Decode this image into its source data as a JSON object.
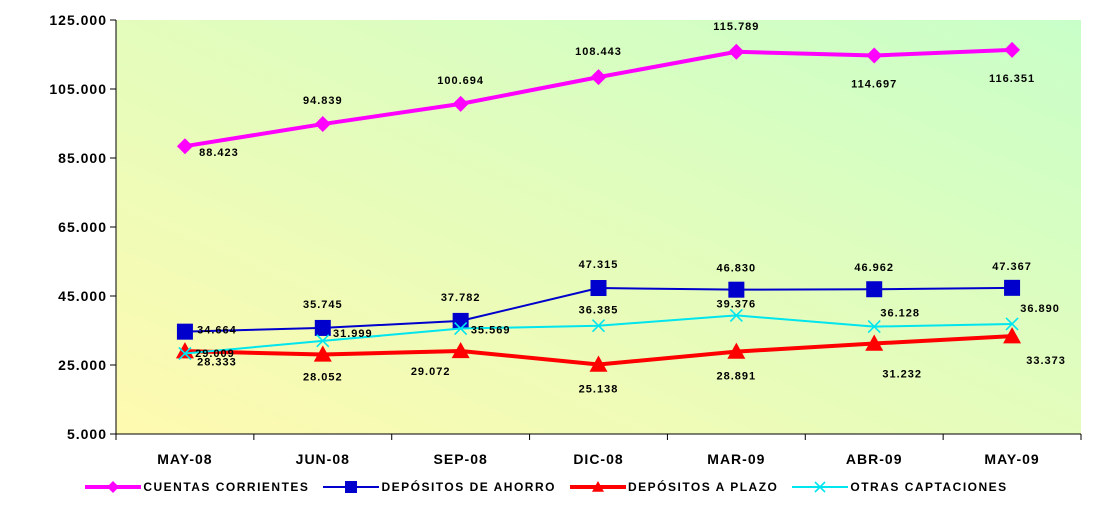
{
  "chart_data": {
    "type": "line",
    "categories": [
      "MAY-08",
      "JUN-08",
      "SEP-08",
      "DIC-08",
      "MAR-09",
      "ABR-09",
      "MAY-09"
    ],
    "ylim": [
      5000,
      125000
    ],
    "yticks": [
      5000,
      25000,
      45000,
      65000,
      85000,
      105000,
      125000
    ],
    "ytick_labels": [
      "5.000",
      "25.000",
      "45.000",
      "65.000",
      "85.000",
      "105.000",
      "125.000"
    ],
    "series": [
      {
        "name": "CUENTAS CORRIENTES",
        "values": [
          88423,
          94839,
          100694,
          108443,
          115789,
          114697,
          116351
        ],
        "labels": [
          "88.423",
          "94.839",
          "100.694",
          "108.443",
          "115.789",
          "114.697",
          "116.351"
        ],
        "color": "#ff00ff",
        "marker": "diamond"
      },
      {
        "name": "DEPÓSITOS DE AHORRO",
        "values": [
          34664,
          35745,
          37782,
          47315,
          46830,
          46962,
          47367
        ],
        "labels": [
          "34.664",
          "35.745",
          "37.782",
          "47.315",
          "46.830",
          "46.962",
          "47.367"
        ],
        "color": "#0000cc",
        "marker": "square"
      },
      {
        "name": "DEPÓSITOS A PLAZO",
        "values": [
          29009,
          28052,
          29072,
          25138,
          28891,
          31232,
          33373
        ],
        "labels": [
          "29.009",
          "28.052",
          "29.072",
          "25.138",
          "28.891",
          "31.232",
          "33.373"
        ],
        "color": "#ff0000",
        "marker": "triangle"
      },
      {
        "name": "OTRAS CAPTACIONES",
        "values": [
          28333,
          31999,
          35569,
          36385,
          39376,
          36128,
          36890
        ],
        "labels": [
          "28.333",
          "31.999",
          "35.569",
          "36.385",
          "39.376",
          "36.128",
          "36.890"
        ],
        "color": "#00e5ee",
        "marker": "x"
      }
    ],
    "grid": false,
    "legend": "bottom",
    "background": {
      "from": "#fffab0",
      "to": "#c8ffc8"
    }
  }
}
